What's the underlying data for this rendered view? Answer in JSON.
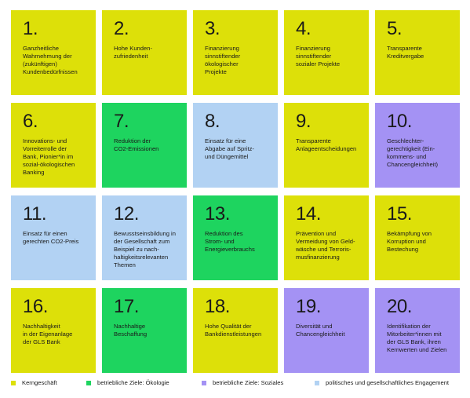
{
  "colors": {
    "kern": "#dde009",
    "oeko": "#1ed45f",
    "sozial": "#a492f4",
    "pol": "#b2d2f3"
  },
  "tiles": [
    {
      "num": "1.",
      "text": "Ganzheitliche\nWahrnehmung der\n(zukünftigen)\nKundenbedürfnissen",
      "cat": "kern"
    },
    {
      "num": "2.",
      "text": "Hohe Kunden-\nzufriedenheit",
      "cat": "kern"
    },
    {
      "num": "3.",
      "text": "Finanzierung\nsinnstiftender\nökologischer\nProjekte",
      "cat": "kern"
    },
    {
      "num": "4.",
      "text": "Finanzierung\nsinnstiftender\nsozialer Projekte",
      "cat": "kern"
    },
    {
      "num": "5.",
      "text": "Transparente\nKreditvergabe",
      "cat": "kern"
    },
    {
      "num": "6.",
      "text": "Innovations- und\nVorreiterrolle der\nBank, Pionier*in im\nsozial-ökologischen\nBanking",
      "cat": "kern"
    },
    {
      "num": "7.",
      "text": "Reduktion der\nCO2-Emissionen",
      "cat": "oeko"
    },
    {
      "num": "8.",
      "text": "Einsatz für eine\nAbgabe auf Spritz-\nund Düngemittel",
      "cat": "pol"
    },
    {
      "num": "9.",
      "text": "Transparente\nAnlageentscheidungen",
      "cat": "kern"
    },
    {
      "num": "10.",
      "text": "Geschlechter-\ngerechtigkeit (Ein-\nkommens- und\nChancengleichheit)",
      "cat": "sozial"
    },
    {
      "num": "11.",
      "text": "Einsatz für einen\ngerechten CO2-Preis",
      "cat": "pol"
    },
    {
      "num": "12.",
      "text": "Bewusstseinsbildung in\nder Gesellschaft zum\nBeispiel zu nach-\nhaltigkeitsrelevanten\nThemen",
      "cat": "pol"
    },
    {
      "num": "13.",
      "text": "Reduktion des\nStrom- und\nEnergieverbrauchs",
      "cat": "oeko"
    },
    {
      "num": "14.",
      "text": "Prävention und\nVermeidung von Geld-\nwäsche und Terroris-\nmusfinanzierung",
      "cat": "kern"
    },
    {
      "num": "15.",
      "text": "Bekämpfung von\nKorruption und\nBestechung",
      "cat": "kern"
    },
    {
      "num": "16.",
      "text": "Nachhaltigkeit\nin der Eigenanlage\nder GLS Bank",
      "cat": "kern"
    },
    {
      "num": "17.",
      "text": "Nachhaltige\nBeschaffung",
      "cat": "oeko"
    },
    {
      "num": "18.",
      "text": "Hohe Qualität der\nBankdienstleistungen",
      "cat": "kern"
    },
    {
      "num": "19.",
      "text": "Diversität und\nChancengleichheit",
      "cat": "sozial"
    },
    {
      "num": "20.",
      "text": "Identifikation der\nMitorbeiter*innen mit\nder GLS Bank, ihren\nKernwerten und Zielen",
      "cat": "sozial"
    }
  ],
  "legend": [
    {
      "label": "Kerngeschäft",
      "cat": "kern"
    },
    {
      "label": "betriebliche Ziele: Ökologie",
      "cat": "oeko"
    },
    {
      "label": "betriebliche Ziele: Soziales",
      "cat": "sozial"
    },
    {
      "label": "politisches und gesellschaftliches Engagement",
      "cat": "pol"
    }
  ]
}
